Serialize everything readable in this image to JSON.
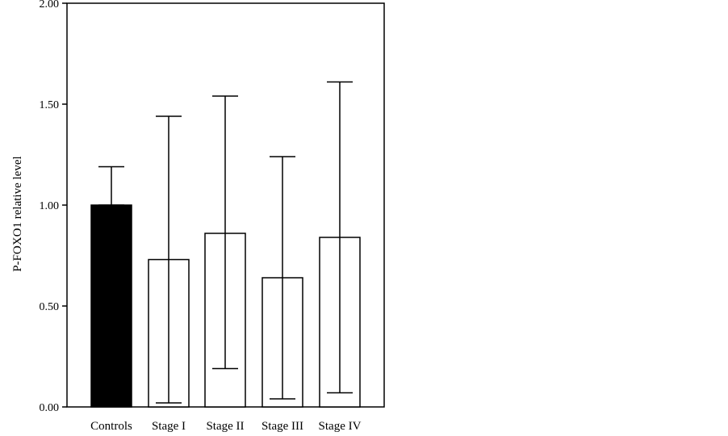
{
  "chart_data": {
    "type": "bar",
    "title": "",
    "xlabel": "",
    "ylabel": "P-FOXO1 relative level",
    "ylim": [
      0,
      2.0
    ],
    "yticks": [
      0.0,
      0.5,
      1.0,
      1.5,
      2.0
    ],
    "ytick_labels": [
      "0.00",
      "0.50",
      "1.00",
      "1.50",
      "2.00"
    ],
    "grid": false,
    "categories": [
      "Controls",
      "Stage I",
      "Stage II",
      "Stage III",
      "Stage IV"
    ],
    "values": [
      1.0,
      0.73,
      0.86,
      0.64,
      0.84
    ],
    "error_low": [
      1.0,
      0.02,
      0.19,
      0.04,
      0.07
    ],
    "error_high": [
      1.19,
      1.44,
      1.54,
      1.24,
      1.61
    ],
    "bar_fill_colors": [
      "#000000",
      "#ffffff",
      "#ffffff",
      "#ffffff",
      "#ffffff"
    ],
    "bar_edge_color": "#000000"
  }
}
